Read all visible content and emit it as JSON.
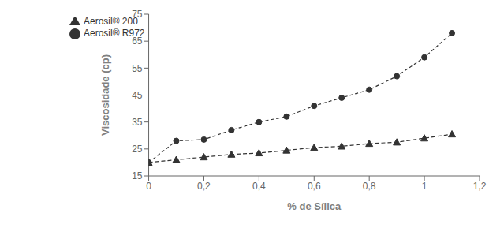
{
  "chart_data": {
    "type": "line",
    "x": [
      0,
      0.1,
      0.2,
      0.3,
      0.4,
      0.5,
      0.6,
      0.7,
      0.8,
      0.9,
      1.0,
      1.1
    ],
    "series": [
      {
        "name": "Aerosil® R972",
        "color": "#333333",
        "marker": "circle",
        "line_style": "dashed",
        "values": [
          20,
          28,
          28.5,
          32,
          35,
          37,
          41,
          44,
          47,
          52,
          59,
          68
        ]
      },
      {
        "name": "Aerosil® 200",
        "color": "#333333",
        "marker": "triangle",
        "line_style": "dashed",
        "values": [
          20,
          21,
          22,
          23,
          23.5,
          24.5,
          25.5,
          26,
          27,
          27.5,
          29,
          30.5
        ]
      }
    ],
    "xlabel": "% de Sílica",
    "ylabel": "Viscosidade (cp)",
    "xlim": [
      0,
      1.2
    ],
    "ylim": [
      15,
      75
    ],
    "xticks": [
      0,
      {
        "value": 0.2,
        "label": "0,2"
      },
      {
        "value": 0.4,
        "label": "0,4"
      },
      {
        "value": 0.6,
        "label": "0,6"
      },
      {
        "value": 0.8,
        "label": "0,8"
      },
      1,
      {
        "value": 1.2,
        "label": "1,2"
      }
    ],
    "yticks": [
      15,
      25,
      35,
      45,
      55,
      65,
      75
    ],
    "legend": "upper left",
    "grid": false
  }
}
